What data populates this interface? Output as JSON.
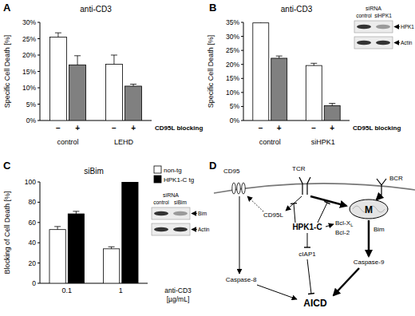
{
  "chart_data": [
    {
      "panel": "A",
      "type": "bar",
      "title": "anti-CD3",
      "ylabel": "Specific Cell Death [%]",
      "categories": [
        "control",
        "LEHD"
      ],
      "series": [
        {
          "name": "−",
          "color": "#ffffff",
          "values": [
            25.5,
            17.2
          ],
          "errors": [
            1.3,
            2.8
          ]
        },
        {
          "name": "+",
          "color": "#808080",
          "values": [
            17,
            10.5
          ],
          "errors": [
            2.8,
            0.6
          ]
        }
      ],
      "ylim": [
        0,
        30
      ],
      "yticks": [
        {
          "value": 0,
          "label": "0%"
        },
        {
          "value": 5,
          "label": "5%"
        },
        {
          "value": 10,
          "label": "10%"
        },
        {
          "value": 15,
          "label": "15%"
        },
        {
          "value": 20,
          "label": "20%"
        },
        {
          "value": 25,
          "label": "25%"
        },
        {
          "value": 30,
          "label": "30%"
        }
      ],
      "legend": "none",
      "grid": false,
      "annotations": [
        "CD95L blocking"
      ]
    },
    {
      "panel": "B",
      "type": "bar",
      "title": "anti-CD3",
      "ylabel": "Specific Cell Death [%]",
      "categories": [
        "control",
        "siHPK1"
      ],
      "series": [
        {
          "name": "−",
          "color": "#ffffff",
          "values": [
            34.8,
            19.6
          ],
          "errors": [
            0.4,
            0.8
          ]
        },
        {
          "name": "+",
          "color": "#808080",
          "values": [
            22.2,
            5.3
          ],
          "errors": [
            0.8,
            0.8
          ]
        }
      ],
      "ylim": [
        0,
        35
      ],
      "yticks": [
        {
          "value": 0,
          "label": "0%"
        },
        {
          "value": 5,
          "label": "5%"
        },
        {
          "value": 10,
          "label": "10%"
        },
        {
          "value": 15,
          "label": "15%"
        },
        {
          "value": 20,
          "label": "20%"
        },
        {
          "value": 25,
          "label": "25%"
        },
        {
          "value": 30,
          "label": "30%"
        },
        {
          "value": 35,
          "label": "35%"
        }
      ],
      "legend": "none",
      "grid": false,
      "annotations": [
        "CD95L blocking"
      ],
      "inset": {
        "title": "siRNA",
        "lanes": [
          "control",
          "siHPK1"
        ],
        "bands": [
          "HPK1",
          "Actin"
        ]
      }
    },
    {
      "panel": "C",
      "type": "bar",
      "title": "siBim",
      "ylabel": "Blocking of Cell Death [%]",
      "xlabel": [
        "anti-CD3",
        "[µg/mL]"
      ],
      "categories": [
        "0.1",
        "1"
      ],
      "series": [
        {
          "name": "non-tg",
          "color": "#ffffff",
          "values": [
            53,
            34
          ],
          "errors": [
            3,
            2
          ]
        },
        {
          "name": "HPK1-C tg",
          "color": "#000000",
          "values": [
            68.5,
            100
          ],
          "errors": [
            2.5,
            4
          ]
        }
      ],
      "ylim": [
        0,
        100
      ],
      "yticks": [
        0,
        20,
        40,
        60,
        80,
        100
      ],
      "legend": "upper right",
      "grid": false,
      "inset": {
        "title": "siRNA",
        "lanes": [
          "control",
          "siBim"
        ],
        "bands": [
          "Bim",
          "Actin"
        ]
      }
    }
  ],
  "diagram": {
    "panel": "D",
    "nodes": [
      {
        "label": "CD95"
      },
      {
        "label": "TCR"
      },
      {
        "label": "BCR"
      },
      {
        "label": "CD95L"
      },
      {
        "label": "HPK1-C"
      },
      {
        "label": "Bcl-X",
        "subscript": "L"
      },
      {
        "label": "Bcl-2"
      },
      {
        "label": "M"
      },
      {
        "label": "Bim"
      },
      {
        "label": "cIAP1"
      },
      {
        "label": "Caspase-8"
      },
      {
        "label": "Caspase-9"
      },
      {
        "label": "AICD"
      }
    ]
  }
}
